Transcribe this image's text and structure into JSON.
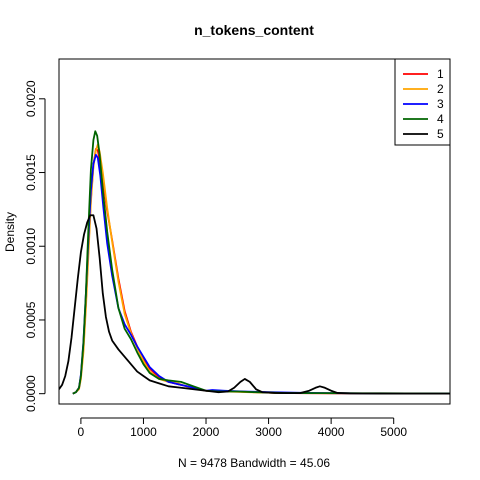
{
  "chart_data": {
    "type": "line",
    "title": "n_tokens_content",
    "xlabel": "N = 9478   Bandwidth = 45.06",
    "ylabel": "Density",
    "xlim": [
      -350,
      5900
    ],
    "ylim": [
      -7e-05,
      0.00227
    ],
    "x_ticks": [
      0,
      1000,
      2000,
      3000,
      4000,
      5000
    ],
    "x_tick_labels": [
      "0",
      "1000",
      "2000",
      "3000",
      "4000",
      "5000"
    ],
    "y_ticks": [
      0.0,
      0.0005,
      0.001,
      0.0015,
      0.002
    ],
    "y_tick_labels": [
      "0.0000",
      "0.0005",
      "0.0010",
      "0.0015",
      "0.0020"
    ],
    "legend_position": "top-right",
    "grid": false,
    "series": [
      {
        "name": "1",
        "color": "#ff0000",
        "points": [
          [
            -130,
            0
          ],
          [
            -80,
            1e-05
          ],
          [
            -30,
            4e-05
          ],
          [
            0,
            0.00012
          ],
          [
            40,
            0.00032
          ],
          [
            80,
            0.00062
          ],
          [
            120,
            0.00098
          ],
          [
            160,
            0.00132
          ],
          [
            200,
            0.00155
          ],
          [
            240,
            0.00166
          ],
          [
            270,
            0.00165
          ],
          [
            310,
            0.00156
          ],
          [
            360,
            0.00142
          ],
          [
            420,
            0.00124
          ],
          [
            500,
            0.00104
          ],
          [
            600,
            0.00078
          ],
          [
            700,
            0.00056
          ],
          [
            800,
            0.00042
          ],
          [
            900,
            0.00032
          ],
          [
            1000,
            0.00024
          ],
          [
            1100,
            0.00017
          ],
          [
            1250,
            0.00011
          ],
          [
            1400,
            8e-05
          ],
          [
            1600,
            6e-05
          ],
          [
            1800,
            4e-05
          ],
          [
            2000,
            2e-05
          ],
          [
            2200,
            2e-05
          ],
          [
            2500,
            1.5e-05
          ],
          [
            2800,
            1e-05
          ],
          [
            3200,
            5e-06
          ],
          [
            3600,
            3e-06
          ],
          [
            4000,
            2e-06
          ],
          [
            5000,
            1e-06
          ],
          [
            5900,
            1e-06
          ]
        ]
      },
      {
        "name": "2",
        "color": "#ffa500",
        "points": [
          [
            -130,
            0
          ],
          [
            -80,
            1e-05
          ],
          [
            -30,
            3e-05
          ],
          [
            0,
            0.0001
          ],
          [
            40,
            0.00028
          ],
          [
            80,
            0.00058
          ],
          [
            120,
            0.00094
          ],
          [
            160,
            0.0013
          ],
          [
            200,
            0.00154
          ],
          [
            240,
            0.00165
          ],
          [
            270,
            0.00169
          ],
          [
            300,
            0.00164
          ],
          [
            350,
            0.0015
          ],
          [
            420,
            0.00126
          ],
          [
            500,
            0.00103
          ],
          [
            600,
            0.00076
          ],
          [
            700,
            0.00054
          ],
          [
            800,
            0.00041
          ],
          [
            900,
            0.00031
          ],
          [
            1000,
            0.00022
          ],
          [
            1100,
            0.00015
          ],
          [
            1250,
            0.0001
          ],
          [
            1400,
            8e-05
          ],
          [
            1550,
            7e-05
          ],
          [
            1750,
            4e-05
          ],
          [
            2000,
            2e-05
          ],
          [
            2300,
            1.5e-05
          ],
          [
            2700,
            1e-05
          ],
          [
            3200,
            5e-06
          ],
          [
            3800,
            4e-06
          ],
          [
            4500,
            2e-06
          ],
          [
            5900,
            1e-06
          ]
        ]
      },
      {
        "name": "3",
        "color": "#0000ff",
        "points": [
          [
            -130,
            0
          ],
          [
            -80,
            1e-05
          ],
          [
            -30,
            4e-05
          ],
          [
            0,
            0.00013
          ],
          [
            40,
            0.00035
          ],
          [
            80,
            0.00068
          ],
          [
            120,
            0.00105
          ],
          [
            160,
            0.00138
          ],
          [
            200,
            0.00156
          ],
          [
            240,
            0.00162
          ],
          [
            270,
            0.0016
          ],
          [
            310,
            0.00148
          ],
          [
            360,
            0.00126
          ],
          [
            420,
            0.00102
          ],
          [
            500,
            0.0008
          ],
          [
            600,
            0.00058
          ],
          [
            700,
            0.00047
          ],
          [
            800,
            0.0004
          ],
          [
            900,
            0.00032
          ],
          [
            1000,
            0.00025
          ],
          [
            1100,
            0.00018
          ],
          [
            1250,
            0.00012
          ],
          [
            1400,
            8e-05
          ],
          [
            1600,
            6e-05
          ],
          [
            1800,
            4e-05
          ],
          [
            2000,
            2e-05
          ],
          [
            2100,
            2.5e-05
          ],
          [
            2300,
            2e-05
          ],
          [
            2600,
            1.5e-05
          ],
          [
            3000,
            1e-05
          ],
          [
            3600,
            5e-06
          ],
          [
            4500,
            2e-06
          ],
          [
            5900,
            1e-06
          ]
        ]
      },
      {
        "name": "4",
        "color": "#006400",
        "points": [
          [
            -130,
            0
          ],
          [
            -80,
            1e-05
          ],
          [
            -30,
            4e-05
          ],
          [
            0,
            0.00012
          ],
          [
            40,
            0.00034
          ],
          [
            80,
            0.00068
          ],
          [
            120,
            0.00112
          ],
          [
            160,
            0.00152
          ],
          [
            200,
            0.00172
          ],
          [
            230,
            0.00178
          ],
          [
            260,
            0.00175
          ],
          [
            300,
            0.00162
          ],
          [
            350,
            0.00138
          ],
          [
            420,
            0.0011
          ],
          [
            500,
            0.00084
          ],
          [
            600,
            0.00058
          ],
          [
            700,
            0.00044
          ],
          [
            800,
            0.00037
          ],
          [
            900,
            0.00028
          ],
          [
            1000,
            0.0002
          ],
          [
            1100,
            0.00014
          ],
          [
            1250,
            0.0001
          ],
          [
            1400,
            9e-05
          ],
          [
            1600,
            8e-05
          ],
          [
            1800,
            5e-05
          ],
          [
            2000,
            2e-05
          ],
          [
            2200,
            1.5e-05
          ],
          [
            2500,
            1.5e-05
          ],
          [
            2800,
            1e-05
          ],
          [
            3200,
            5e-06
          ],
          [
            3800,
            4e-06
          ],
          [
            4500,
            3e-06
          ],
          [
            5200,
            2e-06
          ],
          [
            5900,
            1e-06
          ]
        ]
      },
      {
        "name": "5",
        "color": "#000000",
        "points": [
          [
            -350,
            3e-05
          ],
          [
            -300,
            6e-05
          ],
          [
            -250,
            0.00012
          ],
          [
            -200,
            0.00022
          ],
          [
            -150,
            0.00038
          ],
          [
            -100,
            0.00058
          ],
          [
            -50,
            0.00078
          ],
          [
            0,
            0.00096
          ],
          [
            50,
            0.00108
          ],
          [
            100,
            0.00116
          ],
          [
            150,
            0.00121
          ],
          [
            200,
            0.00121
          ],
          [
            250,
            0.00112
          ],
          [
            300,
            0.00092
          ],
          [
            350,
            0.00068
          ],
          [
            400,
            0.00052
          ],
          [
            450,
            0.00042
          ],
          [
            500,
            0.00036
          ],
          [
            600,
            0.0003
          ],
          [
            700,
            0.00025
          ],
          [
            800,
            0.0002
          ],
          [
            900,
            0.00015
          ],
          [
            1000,
            0.00012
          ],
          [
            1100,
            9e-05
          ],
          [
            1250,
            7e-05
          ],
          [
            1400,
            5e-05
          ],
          [
            1600,
            4e-05
          ],
          [
            1800,
            3e-05
          ],
          [
            2000,
            2e-05
          ],
          [
            2200,
            1e-05
          ],
          [
            2350,
            1.5e-05
          ],
          [
            2450,
            4e-05
          ],
          [
            2550,
            8e-05
          ],
          [
            2620,
            0.0001
          ],
          [
            2700,
            8e-05
          ],
          [
            2800,
            3e-05
          ],
          [
            2900,
            1e-05
          ],
          [
            3100,
            5e-06
          ],
          [
            3300,
            4e-06
          ],
          [
            3500,
            4e-06
          ],
          [
            3650,
            2e-05
          ],
          [
            3750,
            4e-05
          ],
          [
            3820,
            5e-05
          ],
          [
            3900,
            4e-05
          ],
          [
            4000,
            2e-05
          ],
          [
            4100,
            5e-06
          ],
          [
            4300,
            2e-06
          ],
          [
            4600,
            1e-06
          ],
          [
            5900,
            5e-07
          ]
        ]
      }
    ]
  }
}
